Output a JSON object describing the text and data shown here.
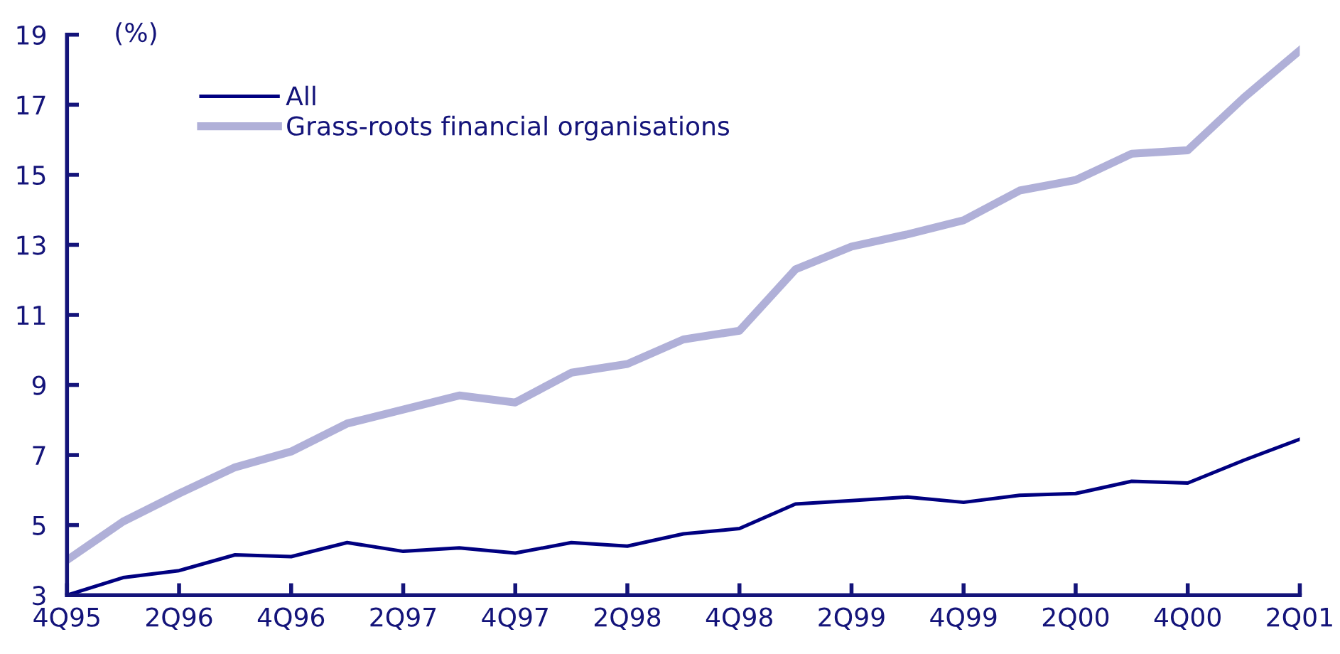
{
  "chart_data": {
    "type": "line",
    "ylabel": "(%)",
    "categories": [
      "4Q95",
      null,
      "2Q96",
      null,
      "4Q96",
      null,
      "2Q97",
      null,
      "4Q97",
      null,
      "2Q98",
      null,
      "4Q98",
      null,
      "2Q99",
      null,
      "4Q99",
      null,
      "2Q00",
      null,
      "4Q00",
      null,
      "2Q01"
    ],
    "series": [
      {
        "name": "All",
        "color": "#000080",
        "values": [
          3.0,
          3.5,
          3.7,
          4.15,
          4.1,
          4.5,
          4.25,
          4.35,
          4.2,
          4.5,
          4.4,
          4.75,
          4.9,
          5.6,
          5.7,
          5.8,
          5.65,
          5.85,
          5.9,
          6.25,
          6.2,
          6.85,
          7.45
        ]
      },
      {
        "name": "Grass-roots financial organisations",
        "color": "#b0b0d8",
        "values": [
          4.0,
          5.1,
          5.9,
          6.65,
          7.1,
          7.9,
          8.3,
          8.7,
          8.5,
          9.35,
          9.6,
          10.3,
          10.55,
          12.3,
          12.95,
          13.3,
          13.7,
          14.55,
          14.85,
          15.6,
          15.7,
          17.2,
          18.55
        ]
      }
    ],
    "ylim": [
      3,
      19
    ],
    "yticks": [
      3,
      5,
      7,
      9,
      11,
      13,
      15,
      17,
      19
    ],
    "grid": false,
    "legend": "top left",
    "marker": "none",
    "line_style": "solid"
  }
}
